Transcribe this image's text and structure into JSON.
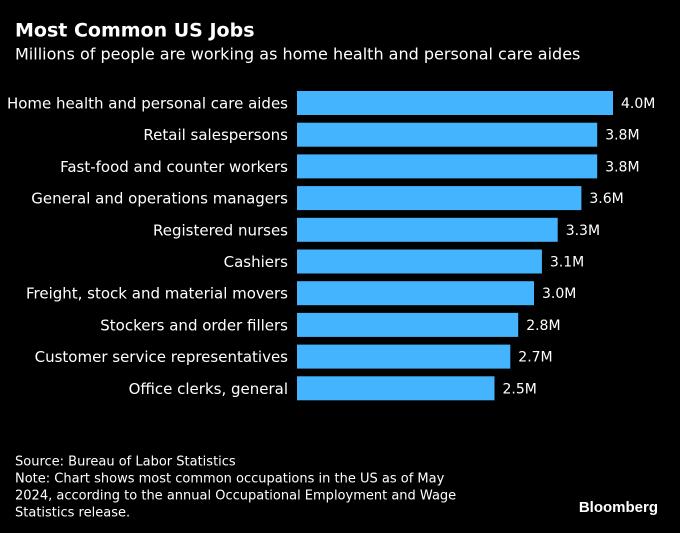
{
  "chart_data": {
    "type": "bar",
    "orientation": "horizontal",
    "title": "Most Common US Jobs",
    "subtitle": "Millions of people are working as home health and personal care aides",
    "categories": [
      "Home health and personal care aides",
      "Retail salespersons",
      "Fast-food and counter workers",
      "General and operations managers",
      "Registered nurses",
      "Cashiers",
      "Freight, stock and material movers",
      "Stockers and order fillers",
      "Customer service representatives",
      "Office clerks, general"
    ],
    "values": [
      4.0,
      3.8,
      3.8,
      3.6,
      3.3,
      3.1,
      3.0,
      2.8,
      2.7,
      2.5
    ],
    "value_labels": [
      "4.0M",
      "3.8M",
      "3.8M",
      "3.6M",
      "3.3M",
      "3.1M",
      "3.0M",
      "2.8M",
      "2.7M",
      "2.5M"
    ],
    "color": "#45b4ff",
    "source": "Source: Bureau of Labor Statistics",
    "note": [
      "Note: Chart shows most common occupations in the US as of May",
      "2024, according to the annual Occupational Employment and Wage",
      "Statistics release."
    ],
    "brand": "Bloomberg"
  }
}
